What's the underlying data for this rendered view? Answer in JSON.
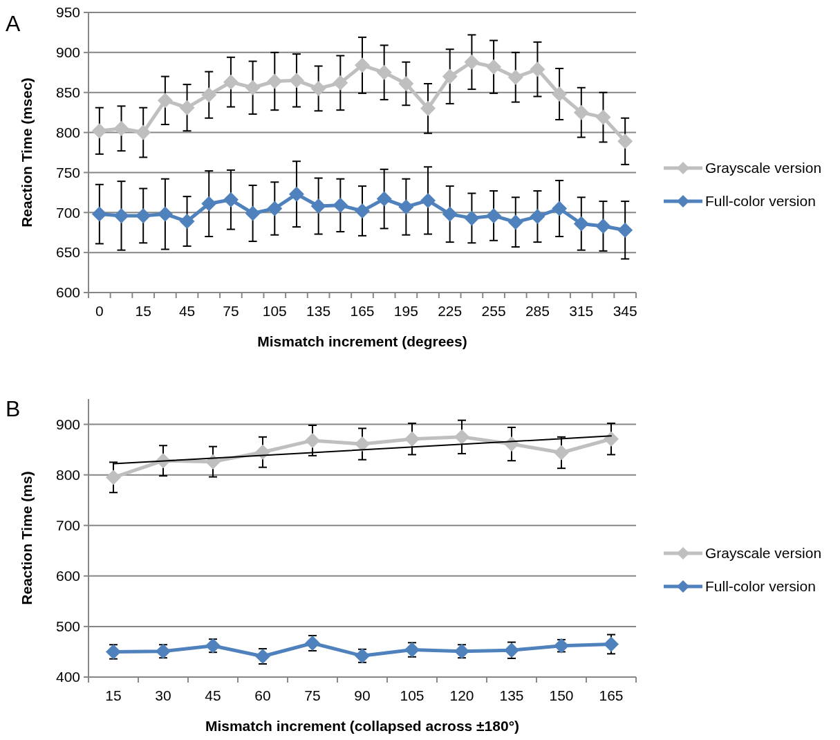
{
  "chart_data": [
    {
      "type": "line",
      "title": "A",
      "xlabel": "Mismatch increment (degrees)",
      "ylabel": "Reaction Time (msec)",
      "categories": [
        "0",
        null,
        "15",
        null,
        "45",
        null,
        "75",
        null,
        "105",
        null,
        "135",
        null,
        "165",
        null,
        "195",
        null,
        "225",
        null,
        "255",
        null,
        "285",
        null,
        "315",
        null,
        "345"
      ],
      "ylim": [
        600,
        950
      ],
      "yticks": [
        600,
        650,
        700,
        750,
        800,
        850,
        900,
        950
      ],
      "grid": "y",
      "legend": "right",
      "marker": "diamond",
      "series": [
        {
          "name": "Grayscale version",
          "color": "#bfbfbf",
          "values": [
            802,
            805,
            800,
            840,
            831,
            847,
            863,
            856,
            864,
            865,
            855,
            862,
            884,
            875,
            861,
            830,
            870,
            888,
            882,
            869,
            879,
            848,
            825,
            819,
            789
          ],
          "errors": [
            29,
            28,
            31,
            30,
            29,
            29,
            31,
            33,
            36,
            33,
            28,
            34,
            35,
            34,
            27,
            31,
            34,
            34,
            33,
            31,
            34,
            32,
            31,
            31,
            29
          ]
        },
        {
          "name": "Full-color version",
          "color": "#4f81bd",
          "values": [
            698,
            696,
            696,
            698,
            689,
            711,
            716,
            699,
            705,
            723,
            708,
            709,
            702,
            717,
            707,
            715,
            698,
            693,
            696,
            688,
            695,
            705,
            686,
            683,
            678
          ],
          "errors": [
            37,
            43,
            34,
            44,
            31,
            41,
            37,
            35,
            33,
            41,
            35,
            33,
            31,
            37,
            35,
            42,
            35,
            31,
            31,
            31,
            32,
            35,
            33,
            31,
            36
          ]
        }
      ]
    },
    {
      "type": "line",
      "title": "B",
      "xlabel": "Mismatch increment (collapsed across ±180°)",
      "ylabel": "Reaction Time (ms)",
      "categories": [
        "15",
        "30",
        "45",
        "60",
        "75",
        "90",
        "105",
        "120",
        "135",
        "150",
        "165"
      ],
      "ylim": [
        400,
        950
      ],
      "yticks": [
        400,
        500,
        600,
        700,
        800,
        900
      ],
      "grid": "y",
      "legend": "right",
      "marker": "diamond",
      "series": [
        {
          "name": "Grayscale version",
          "color": "#bfbfbf",
          "values": [
            795,
            828,
            826,
            845,
            868,
            861,
            871,
            875,
            861,
            844,
            871
          ],
          "errors": [
            30,
            30,
            30,
            30,
            30,
            31,
            31,
            33,
            33,
            31,
            31
          ]
        },
        {
          "name": "Full-color version",
          "color": "#4f81bd",
          "values": [
            450,
            451,
            462,
            441,
            467,
            442,
            454,
            451,
            453,
            462,
            465
          ],
          "errors": [
            14,
            13,
            13,
            15,
            15,
            13,
            14,
            13,
            16,
            12,
            19
          ]
        },
        {
          "type": "line",
          "color": "#000000",
          "marker": "none",
          "x": [
            "15",
            "165"
          ],
          "values": [
            822,
            877
          ]
        }
      ]
    }
  ]
}
